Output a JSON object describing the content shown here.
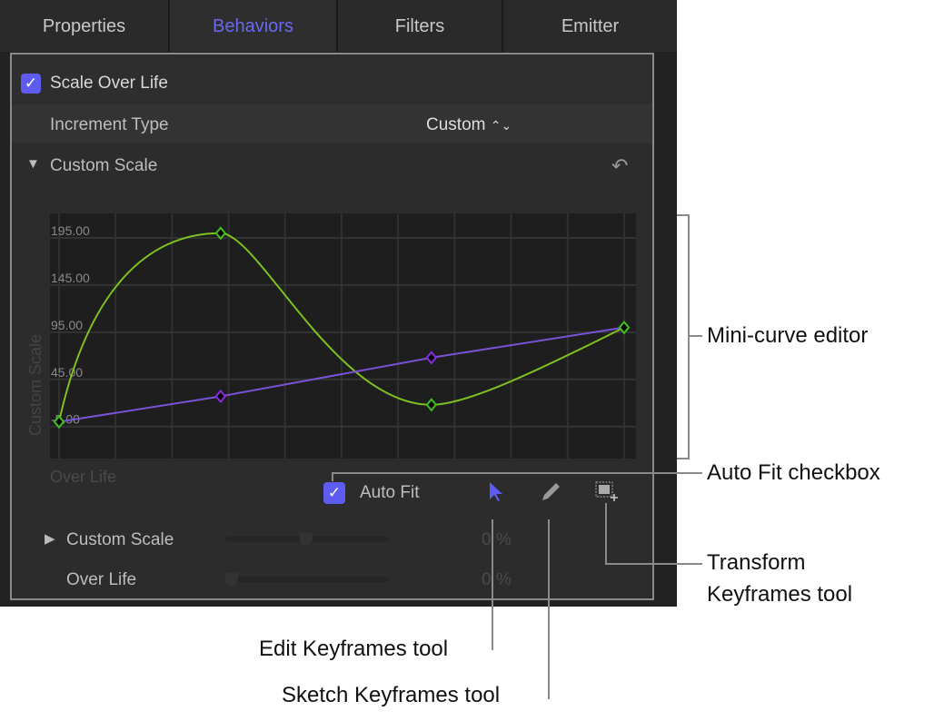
{
  "tabs": [
    {
      "label": "Properties"
    },
    {
      "label": "Behaviors",
      "active": true
    },
    {
      "label": "Filters"
    },
    {
      "label": "Emitter"
    }
  ],
  "behavior": {
    "name": "Scale Over Life",
    "enabled": true
  },
  "increment": {
    "label": "Increment Type",
    "value": "Custom"
  },
  "custom_scale": {
    "label": "Custom Scale",
    "reset_icon": "undo-arrow-icon"
  },
  "editor": {
    "auto_fit_label": "Auto Fit",
    "auto_fit": true,
    "tools": [
      "Edit Keyframes tool",
      "Sketch Keyframes tool",
      "Transform Keyframes tool"
    ]
  },
  "params": [
    {
      "label": "Custom Scale",
      "value": "0",
      "unit": "%",
      "slider": 0.5
    },
    {
      "label": "Over Life",
      "value": "0",
      "unit": "%",
      "slider": 0
    }
  ],
  "colors": {
    "accent": "#5e5cf0",
    "green_curve": "#7fbf1f",
    "purple_curve": "#7a52d6"
  },
  "chart_data": {
    "type": "line",
    "ylabel": "Custom Scale",
    "xlabel": "Over Life",
    "yticks": [
      "195.00",
      "145.00",
      "95.00",
      "45.00",
      "-5.00"
    ],
    "ylim": [
      -39,
      221
    ],
    "xlim": [
      -1.6,
      102.1
    ],
    "series": [
      {
        "color": "#7fbf1f",
        "points": [
          [
            0,
            0
          ],
          [
            28.6,
            200
          ],
          [
            65.9,
            18
          ],
          [
            100,
            100
          ]
        ]
      },
      {
        "color": "#7a52d6",
        "points": [
          [
            0,
            0
          ],
          [
            28.6,
            27
          ],
          [
            65.9,
            68
          ],
          [
            100,
            100
          ]
        ]
      }
    ]
  },
  "annotations": {
    "mini_curve": "Mini-curve editor",
    "auto_fit": "Auto Fit checkbox",
    "transform1": "Transform",
    "transform2": "Keyframes tool",
    "edit": "Edit Keyframes tool",
    "sketch": "Sketch Keyframes tool"
  }
}
